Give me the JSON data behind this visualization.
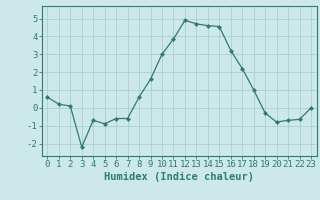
{
  "x": [
    0,
    1,
    2,
    3,
    4,
    5,
    6,
    7,
    8,
    9,
    10,
    11,
    12,
    13,
    14,
    15,
    16,
    17,
    18,
    19,
    20,
    21,
    22,
    23
  ],
  "y": [
    0.6,
    0.2,
    0.1,
    -2.2,
    -0.7,
    -0.9,
    -0.6,
    -0.6,
    0.6,
    1.6,
    3.0,
    3.85,
    4.9,
    4.7,
    4.6,
    4.55,
    3.2,
    2.2,
    1.0,
    -0.3,
    -0.8,
    -0.7,
    -0.65,
    0.0
  ],
  "xlabel": "Humidex (Indice chaleur)",
  "xlim": [
    -0.5,
    23.5
  ],
  "ylim": [
    -2.7,
    5.7
  ],
  "yticks": [
    -2,
    -1,
    0,
    1,
    2,
    3,
    4,
    5
  ],
  "xticks": [
    0,
    1,
    2,
    3,
    4,
    5,
    6,
    7,
    8,
    9,
    10,
    11,
    12,
    13,
    14,
    15,
    16,
    17,
    18,
    19,
    20,
    21,
    22,
    23
  ],
  "line_color": "#2e7d6e",
  "marker": "D",
  "marker_size": 2.0,
  "bg_color": "#cce8e8",
  "grid_color": "#aad0d0",
  "axis_color": "#2e7d6e",
  "xlabel_fontsize": 7.5,
  "tick_fontsize": 6.5
}
